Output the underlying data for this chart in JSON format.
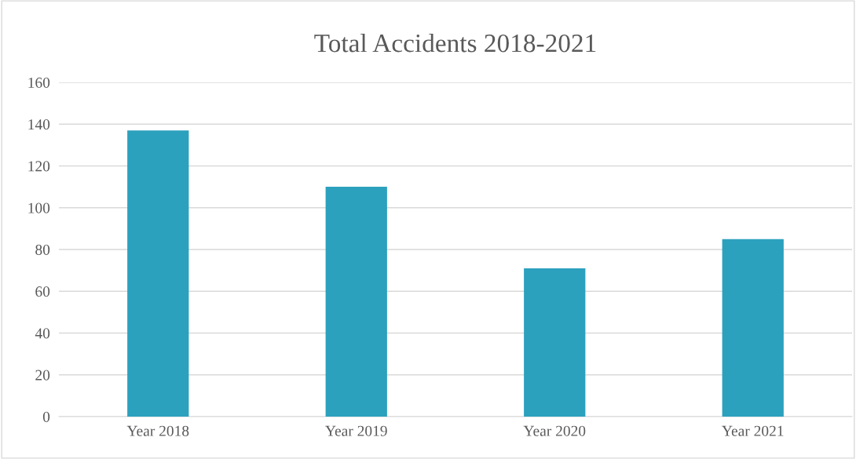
{
  "chart_data": {
    "type": "bar",
    "title": "Total Accidents 2018-2021",
    "categories": [
      "Year 2018",
      "Year 2019",
      "Year 2020",
      "Year 2021"
    ],
    "values": [
      137,
      110,
      71,
      85
    ],
    "color": "#2ca1be",
    "ylim": [
      0,
      160
    ],
    "yticks": [
      0,
      20,
      40,
      60,
      80,
      100,
      120,
      140,
      160
    ],
    "grid": "y"
  }
}
